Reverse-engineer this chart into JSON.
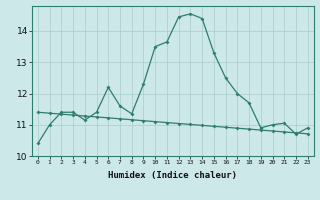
{
  "xlabel": "Humidex (Indice chaleur)",
  "ylabel": "",
  "x_values": [
    0,
    1,
    2,
    3,
    4,
    5,
    6,
    7,
    8,
    9,
    10,
    11,
    12,
    13,
    14,
    15,
    16,
    17,
    18,
    19,
    20,
    21,
    22,
    23
  ],
  "y_line1": [
    10.4,
    11.0,
    11.4,
    11.4,
    11.15,
    11.4,
    12.2,
    11.6,
    11.35,
    12.3,
    13.5,
    13.65,
    14.45,
    14.55,
    14.4,
    13.3,
    12.5,
    12.0,
    11.7,
    10.9,
    11.0,
    11.05,
    10.7,
    10.9
  ],
  "y_line2": [
    11.4,
    11.37,
    11.34,
    11.31,
    11.28,
    11.25,
    11.22,
    11.19,
    11.16,
    11.13,
    11.1,
    11.07,
    11.04,
    11.01,
    10.98,
    10.95,
    10.92,
    10.89,
    10.86,
    10.83,
    10.8,
    10.77,
    10.74,
    10.71
  ],
  "line_color": "#2e7d6e",
  "bg_color": "#cce8e8",
  "grid_color": "#aacccc",
  "ylim": [
    10.0,
    14.8
  ],
  "yticks": [
    10,
    11,
    12,
    13,
    14
  ],
  "xticks": [
    0,
    1,
    2,
    3,
    4,
    5,
    6,
    7,
    8,
    9,
    10,
    11,
    12,
    13,
    14,
    15,
    16,
    17,
    18,
    19,
    20,
    21,
    22,
    23
  ]
}
